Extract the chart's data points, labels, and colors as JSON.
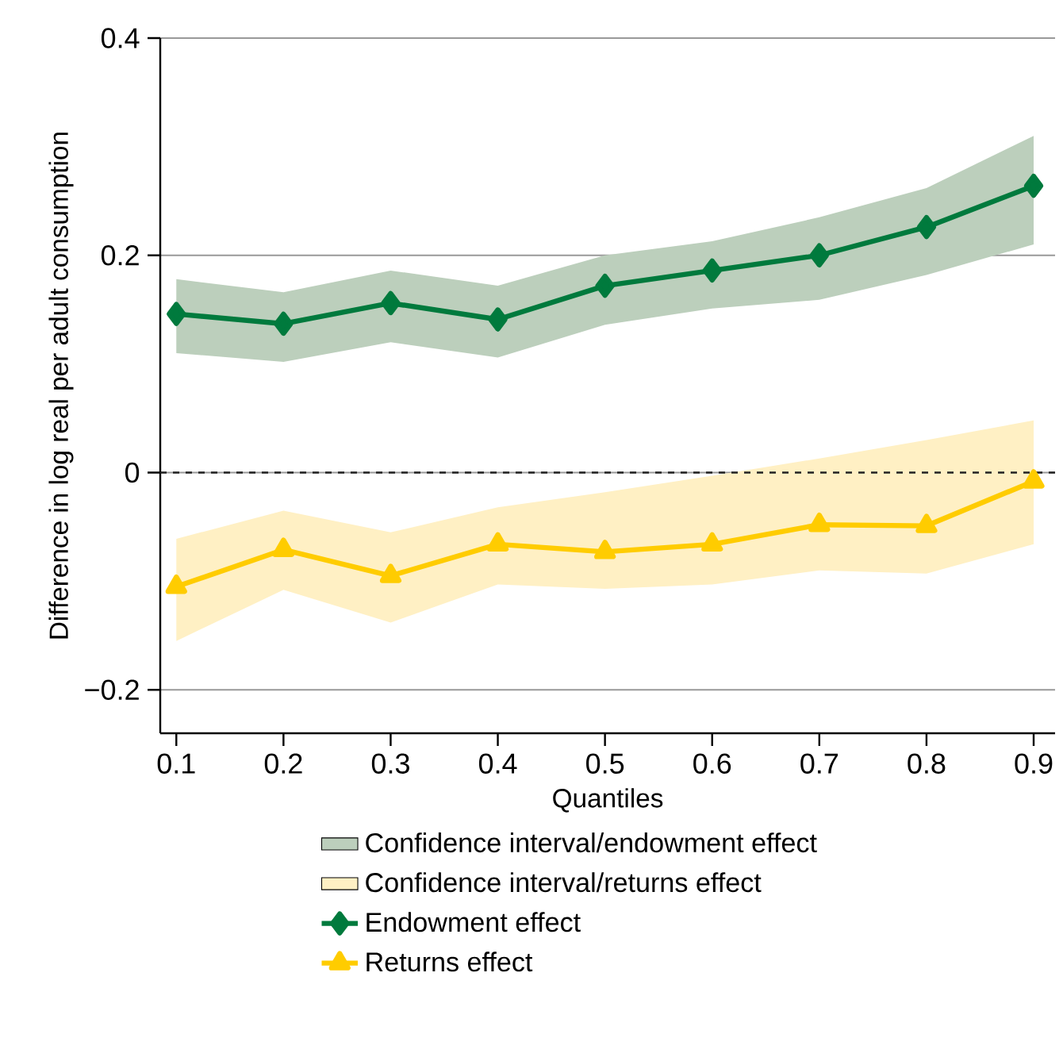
{
  "chart_data": {
    "type": "line",
    "xlabel": "Quantiles",
    "ylabel": "Difference in log real per adult consumption",
    "x": [
      0.1,
      0.2,
      0.3,
      0.4,
      0.5,
      0.6,
      0.7,
      0.8,
      0.9
    ],
    "series": [
      {
        "type": "area",
        "name": "Confidence interval/endowment effect",
        "color": "#bccfbc",
        "values": [
          null,
          null,
          null,
          null,
          null,
          null,
          null,
          null,
          null
        ],
        "lower": [
          0.11,
          0.102,
          0.12,
          0.106,
          0.136,
          0.151,
          0.159,
          0.182,
          0.21
        ],
        "upper": [
          0.178,
          0.166,
          0.186,
          0.172,
          0.2,
          0.213,
          0.235,
          0.262,
          0.31
        ]
      },
      {
        "type": "area",
        "name": "Confidence interval/returns effect",
        "color": "#fff0c4",
        "values": [
          null,
          null,
          null,
          null,
          null,
          null,
          null,
          null,
          null
        ],
        "lower": [
          -0.155,
          -0.108,
          -0.138,
          -0.103,
          -0.107,
          -0.103,
          -0.09,
          -0.093,
          -0.066
        ],
        "upper": [
          -0.061,
          -0.035,
          -0.055,
          -0.032,
          -0.018,
          -0.003,
          0.013,
          0.03,
          0.048
        ]
      },
      {
        "name": "Endowment effect",
        "color": "#007a3d",
        "marker": "diamond",
        "values": [
          0.146,
          0.137,
          0.156,
          0.141,
          0.172,
          0.186,
          0.2,
          0.226,
          0.264
        ]
      },
      {
        "name": "Returns effect",
        "color": "#ffcc00",
        "marker": "triangle",
        "values": [
          -0.105,
          -0.071,
          -0.095,
          -0.066,
          -0.073,
          -0.066,
          -0.048,
          -0.049,
          -0.008
        ]
      }
    ],
    "xlim": [
      0.085,
      0.92
    ],
    "ylim": [
      -0.24,
      0.4
    ],
    "xticks": [
      0.1,
      0.2,
      0.3,
      0.4,
      0.5,
      0.6,
      0.7,
      0.8,
      0.9
    ],
    "yticks": [
      {
        "value": -0.2,
        "label": "−0.2"
      },
      {
        "value": 0,
        "label": "0"
      },
      {
        "value": 0.2,
        "label": "0.2"
      },
      {
        "value": 0.4,
        "label": "0.4"
      }
    ],
    "ref_lines": [
      {
        "axis": "y",
        "value": 0,
        "color": "#222222",
        "line_style": "dashed"
      }
    ],
    "grid": "y",
    "legend": "bottom"
  }
}
